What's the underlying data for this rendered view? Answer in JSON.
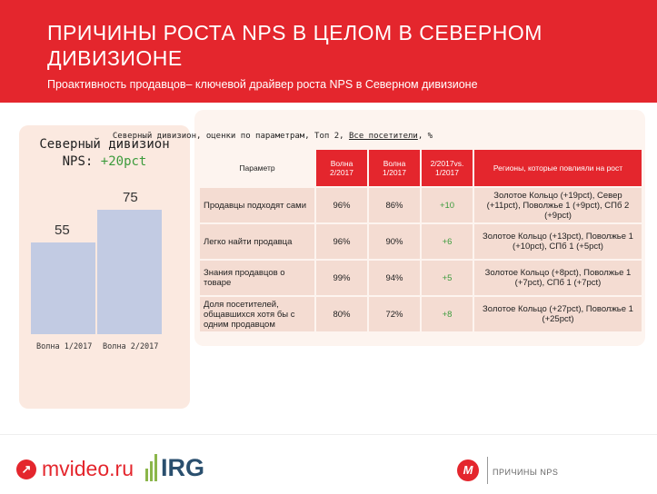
{
  "header": {
    "title": "ПРИЧИНЫ РОСТА NPS В ЦЕЛОМ В СЕВЕРНОМ ДИВИЗИОНЕ",
    "subtitle": "Проактивность продавцов– ключевой драйвер роста NPS в Северном дивизионе"
  },
  "left_panel": {
    "title_line1": "Северный дивизион",
    "title_prefix": "NPS:",
    "title_delta": "+20pct"
  },
  "chart_data": {
    "type": "bar",
    "categories": [
      "Волна 1/2017",
      "Волна 2/2017"
    ],
    "values": [
      55,
      75
    ],
    "ylim": [
      0,
      100
    ]
  },
  "table": {
    "caption_pre": "Северный дивизион, оценки по параметрам, Топ 2, ",
    "caption_underlined": "Все посетители",
    "caption_post": ", %",
    "headers": [
      "Параметр",
      "Волна 2/2017",
      "Волна 1/2017",
      "2/2017vs. 1/2017",
      "Регионы, которые повлияли на рост"
    ],
    "rows": [
      {
        "param": "Продавцы подходят сами",
        "w2": "96%",
        "w1": "86%",
        "delta": "+10",
        "regions": "Золотое Кольцо (+19pct), Север (+11pct), Поволжье 1 (+9pct), СПб 2 (+9pct)"
      },
      {
        "param": "Легко найти продавца",
        "w2": "96%",
        "w1": "90%",
        "delta": "+6",
        "regions": "Золотое Кольцо (+13pct), Поволжье 1 (+10pct), СПб 1 (+5pct)"
      },
      {
        "param": "Знания продавцов о товаре",
        "w2": "99%",
        "w1": "94%",
        "delta": "+5",
        "regions": "Золотое Кольцо (+8pct), Поволжье 1 (+7pct), СПб 1 (+7pct)"
      },
      {
        "param": "Доля посетителей, общавшихся хотя бы с одним продавцом",
        "w2": "80%",
        "w1": "72%",
        "delta": "+8",
        "regions": "Золотое Кольцо (+27pct), Поволжье 1 (+25pct)"
      }
    ]
  },
  "footer": {
    "brand": "mvideo.ru",
    "partner": "IRG",
    "section_label": "ПРИЧИНЫ NPS"
  },
  "colors": {
    "brand_red": "#e4262d",
    "bar": "#c2cbe3",
    "positive": "#3c9b3c"
  }
}
